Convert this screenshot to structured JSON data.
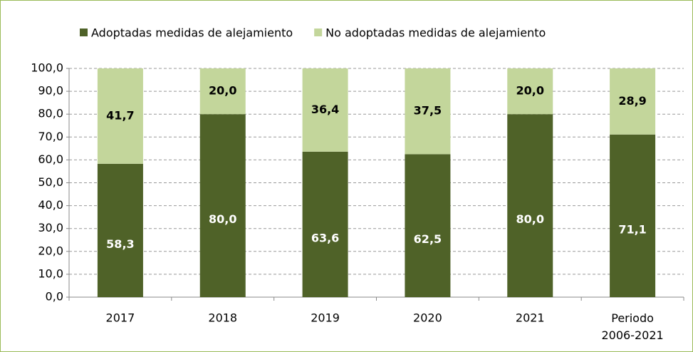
{
  "chart_data": {
    "type": "stacked_bar",
    "categories": [
      "2017",
      "2018",
      "2019",
      "2020",
      "2021",
      "Periodo 2006-2021"
    ],
    "series": [
      {
        "name": "Adoptadas medidas de alejamiento",
        "color": "#4f6228",
        "values": [
          58.3,
          80.0,
          63.6,
          62.5,
          80.0,
          71.1
        ],
        "value_labels": [
          "58,3",
          "80,0",
          "63,6",
          "62,5",
          "80,0",
          "71,1"
        ]
      },
      {
        "name": "No adoptadas medidas de alejamiento",
        "color": "#c3d69b",
        "values": [
          41.7,
          20.0,
          36.4,
          37.5,
          20.0,
          28.9
        ],
        "value_labels": [
          "41,7",
          "20,0",
          "36,4",
          "37,5",
          "20,0",
          "28,9"
        ]
      }
    ],
    "ylim": [
      0,
      100
    ],
    "yticks": [
      {
        "value": 0,
        "label": "0,0"
      },
      {
        "value": 10,
        "label": "10,0"
      },
      {
        "value": 20,
        "label": "20,0"
      },
      {
        "value": 30,
        "label": "30,0"
      },
      {
        "value": 40,
        "label": "40,0"
      },
      {
        "value": 50,
        "label": "50,0"
      },
      {
        "value": 60,
        "label": "60,0"
      },
      {
        "value": 70,
        "label": "70,0"
      },
      {
        "value": 80,
        "label": "80,0"
      },
      {
        "value": 90,
        "label": "90,0"
      },
      {
        "value": 100,
        "label": "100,0"
      }
    ],
    "grid": true,
    "legend": "top"
  }
}
